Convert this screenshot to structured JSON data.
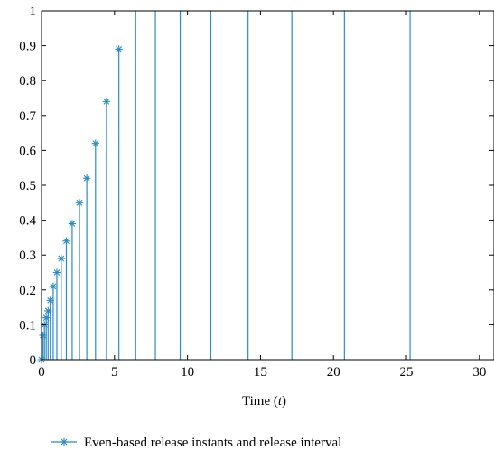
{
  "chart_data": {
    "type": "stem",
    "xlabel_prefix": "Time (",
    "xlabel_var": "t",
    "xlabel_suffix": ")",
    "xlim": [
      0,
      31
    ],
    "ylim": [
      0,
      1
    ],
    "xticks": [
      0,
      5,
      10,
      15,
      20,
      25,
      30
    ],
    "yticks": [
      0,
      0.1,
      0.2,
      0.3,
      0.4,
      0.5,
      0.6,
      0.7,
      0.8,
      0.9,
      1
    ],
    "ytick_labels": [
      "0",
      "0.1",
      "0.2",
      "0.3",
      "0.4",
      "0.5",
      "0.6",
      "0.7",
      "0.8",
      "0.9",
      "1"
    ],
    "legend_position": "bottom",
    "grid": false,
    "series_color": "#2a8cc4",
    "series": [
      {
        "name": "Even-based release instants and release interval",
        "marker": "asterisk",
        "points": [
          {
            "x": 0.0,
            "y": 0.0
          },
          {
            "x": 0.1,
            "y": 0.07
          },
          {
            "x": 0.2,
            "y": 0.1
          },
          {
            "x": 0.32,
            "y": 0.12
          },
          {
            "x": 0.45,
            "y": 0.14
          },
          {
            "x": 0.6,
            "y": 0.17
          },
          {
            "x": 0.8,
            "y": 0.21
          },
          {
            "x": 1.05,
            "y": 0.25
          },
          {
            "x": 1.35,
            "y": 0.29
          },
          {
            "x": 1.7,
            "y": 0.34
          },
          {
            "x": 2.1,
            "y": 0.39
          },
          {
            "x": 2.6,
            "y": 0.45
          },
          {
            "x": 3.1,
            "y": 0.52
          },
          {
            "x": 3.7,
            "y": 0.62
          },
          {
            "x": 4.45,
            "y": 0.74
          },
          {
            "x": 5.3,
            "y": 0.89
          },
          {
            "x": 6.45,
            "y": 1.0
          },
          {
            "x": 7.8,
            "y": 1.0
          },
          {
            "x": 9.5,
            "y": 1.0
          },
          {
            "x": 11.6,
            "y": 1.0
          },
          {
            "x": 14.15,
            "y": 1.0
          },
          {
            "x": 17.15,
            "y": 1.0
          },
          {
            "x": 20.75,
            "y": 1.0
          },
          {
            "x": 25.25,
            "y": 1.0
          }
        ]
      }
    ]
  }
}
